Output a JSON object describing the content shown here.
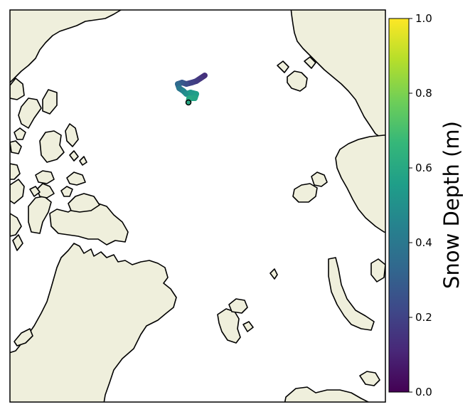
{
  "map": {
    "projection": "polar stereographic (Arctic)",
    "land_color": "#efefdc",
    "ocean_color": "#ffffff",
    "track": {
      "colormap": "viridis",
      "points": [
        {
          "snow_depth": 0.14
        },
        {
          "snow_depth": 0.16
        },
        {
          "snow_depth": 0.18
        },
        {
          "snow_depth": 0.2
        },
        {
          "snow_depth": 0.24
        },
        {
          "snow_depth": 0.28
        },
        {
          "snow_depth": 0.34
        },
        {
          "snow_depth": 0.4
        },
        {
          "snow_depth": 0.46
        },
        {
          "snow_depth": 0.5
        },
        {
          "snow_depth": 0.54
        },
        {
          "snow_depth": 0.56
        },
        {
          "snow_depth": 0.58
        },
        {
          "snow_depth": 0.6
        },
        {
          "snow_depth": 0.61
        }
      ],
      "marker": "open circle (end point)"
    }
  },
  "colorbar": {
    "label": "Snow Depth (m)",
    "min": 0.0,
    "max": 1.0,
    "ticks": [
      "0.0",
      "0.2",
      "0.4",
      "0.6",
      "0.8",
      "1.0"
    ],
    "colormap": "viridis",
    "colors": [
      "#440154",
      "#482878",
      "#3e4989",
      "#31688e",
      "#26828e",
      "#1f9e89",
      "#35b779",
      "#6ece58",
      "#b5de2b",
      "#fde725"
    ]
  }
}
